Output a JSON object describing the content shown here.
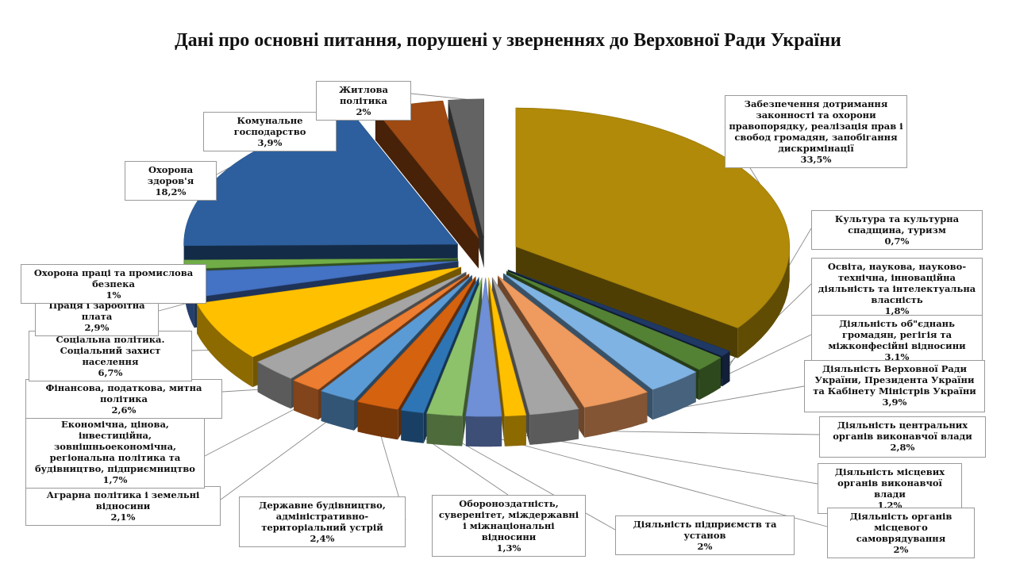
{
  "chart_data": {
    "type": "pie",
    "title": "Дані про основні питання, порушені у зверненнях до Верховної Ради України",
    "slices": [
      {
        "label": "Забезпечення дотримання законності та охорони правопорядку, реалізація прав і свобод громадян, запобігання дискримінації",
        "value": 33.5,
        "value_label": "33,5%",
        "color": "#b08a08"
      },
      {
        "label": "Культура та культурна спадщина, туризм",
        "value": 0.7,
        "value_label": "0,7%",
        "color": "#1f3864"
      },
      {
        "label": "Освіта, наукова, науково-технічна, інноваційна діяльність та інтелектуальна власність",
        "value": 1.8,
        "value_label": "1,8%",
        "color": "#548235"
      },
      {
        "label": "Діяльність об\"єднань громадян, регігія та міжконфесійні відносини",
        "value": 3.1,
        "value_label": "3,1%",
        "color": "#7fb3e3"
      },
      {
        "label": "Діяльність Верховної Ради України, Президента України та Кабінету Міністрів України",
        "value": 3.9,
        "value_label": "3,9%",
        "color": "#ef9a5e"
      },
      {
        "label": "Діяльність центральних органів виконавчої влади",
        "value": 2.8,
        "value_label": "2,8%",
        "color": "#a5a5a5"
      },
      {
        "label": "Діяльність місцевих органів виконавчої влади",
        "value": 1.2,
        "value_label": "1,2%",
        "color": "#ffc000"
      },
      {
        "label": "Діяльність органів місцевого самоврядування",
        "value": 2.0,
        "value_label": "2%",
        "color": "#6f8fd6"
      },
      {
        "label": "Діяльність підприємств та установ",
        "value": 2.0,
        "value_label": "2%",
        "color": "#8dc26b"
      },
      {
        "label": "Обороноздатність, суверенітет, міждержавні і міжнаціональні відносини",
        "value": 1.3,
        "value_label": "1,3%",
        "color": "#2e75b6"
      },
      {
        "label": "Державне будівництво, адміністративно-територіальний устрій",
        "value": 2.4,
        "value_label": "2,4%",
        "color": "#d5620f"
      },
      {
        "label": "Аграрна політика і земельні відносини",
        "value": 2.1,
        "value_label": "2,1%",
        "color": "#5b9bd5"
      },
      {
        "label": "Економічна, цінова, інвестиційна, зовнішньоекономічна, регіональна політика та будівництво, підприємництво",
        "value": 1.7,
        "value_label": "1,7%",
        "color": "#ed7d31"
      },
      {
        "label": "Фінансова, податкова, митна політика",
        "value": 2.6,
        "value_label": "2,6%",
        "color": "#a5a5a5"
      },
      {
        "label": "Соціальна політика. Соціальний захист населення",
        "value": 6.7,
        "value_label": "6,7%",
        "color": "#ffc000"
      },
      {
        "label": "Праця і заробітна плата",
        "value": 2.9,
        "value_label": "2,9%",
        "color": "#4472c4"
      },
      {
        "label": "Охорона праці та промислова безпека",
        "value": 1.0,
        "value_label": "1%",
        "color": "#70ad47"
      },
      {
        "label": "Охорона здоров'я",
        "value": 18.2,
        "value_label": "18,2%",
        "color": "#2d5f9e"
      },
      {
        "label": "Комунальне господарство",
        "value": 3.9,
        "value_label": "3,9%",
        "color": "#9e4a12"
      },
      {
        "label": "Житлова політика",
        "value": 2.0,
        "value_label": "2%",
        "color": "#636363"
      }
    ]
  }
}
